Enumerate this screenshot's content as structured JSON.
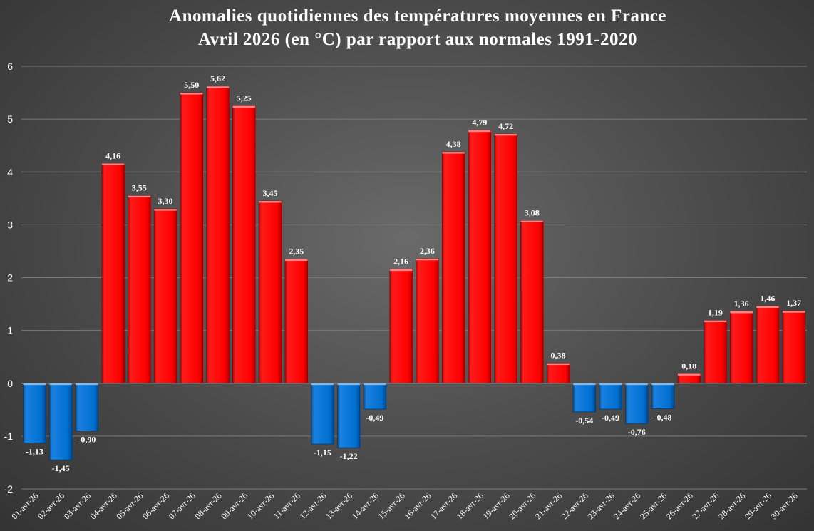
{
  "chart_data": {
    "type": "bar",
    "title": "Anomalies quotidiennes des températures moyennes en France",
    "subtitle": "Avril 2026 (en °C) par rapport aux normales 1991-2020",
    "xlabel": "",
    "ylabel": "",
    "ylim": [
      -2,
      6
    ],
    "yticks": [
      "6",
      "5",
      "4",
      "3",
      "2",
      "1",
      "0",
      "-1",
      "-2"
    ],
    "grid": true,
    "legend": "none",
    "positive_color": "#ff0000",
    "negative_color": "#0070d0",
    "categories": [
      "01-avr-26",
      "02-avr-26",
      "03-avr-26",
      "04-avr-26",
      "05-avr-26",
      "06-avr-26",
      "07-avr-26",
      "08-avr-26",
      "09-avr-26",
      "10-avr-26",
      "11-avr-26",
      "12-avr-26",
      "13-avr-26",
      "14-avr-26",
      "15-avr-26",
      "16-avr-26",
      "17-avr-26",
      "18-avr-26",
      "19-avr-26",
      "20-avr-26",
      "21-avr-26",
      "22-avr-26",
      "23-avr-26",
      "24-avr-26",
      "25-avr-26",
      "26-avr-26",
      "27-avr-26",
      "28-avr-26",
      "29-avr-26",
      "30-avr-26"
    ],
    "values": [
      -1.13,
      -1.45,
      -0.9,
      4.16,
      3.55,
      3.3,
      5.5,
      5.62,
      5.25,
      3.45,
      2.35,
      -1.15,
      -1.22,
      -0.49,
      2.16,
      2.36,
      4.38,
      4.79,
      4.72,
      3.08,
      0.38,
      -0.54,
      -0.49,
      -0.76,
      -0.48,
      0.18,
      1.19,
      1.36,
      1.46,
      1.37
    ],
    "data_labels": [
      "-1,13",
      "-1,45",
      "-0,90",
      "4,16",
      "3,55",
      "3,30",
      "5,50",
      "5,62",
      "5,25",
      "3,45",
      "2,35",
      "-1,15",
      "-1,22",
      "-0,49",
      "2,16",
      "2,36",
      "4,38",
      "4,79",
      "4,72",
      "3,08",
      "0,38",
      "-0,54",
      "-0,49",
      "-0,76",
      "-0,48",
      "0,18",
      "1,19",
      "1,36",
      "1,46",
      "1,37"
    ]
  }
}
